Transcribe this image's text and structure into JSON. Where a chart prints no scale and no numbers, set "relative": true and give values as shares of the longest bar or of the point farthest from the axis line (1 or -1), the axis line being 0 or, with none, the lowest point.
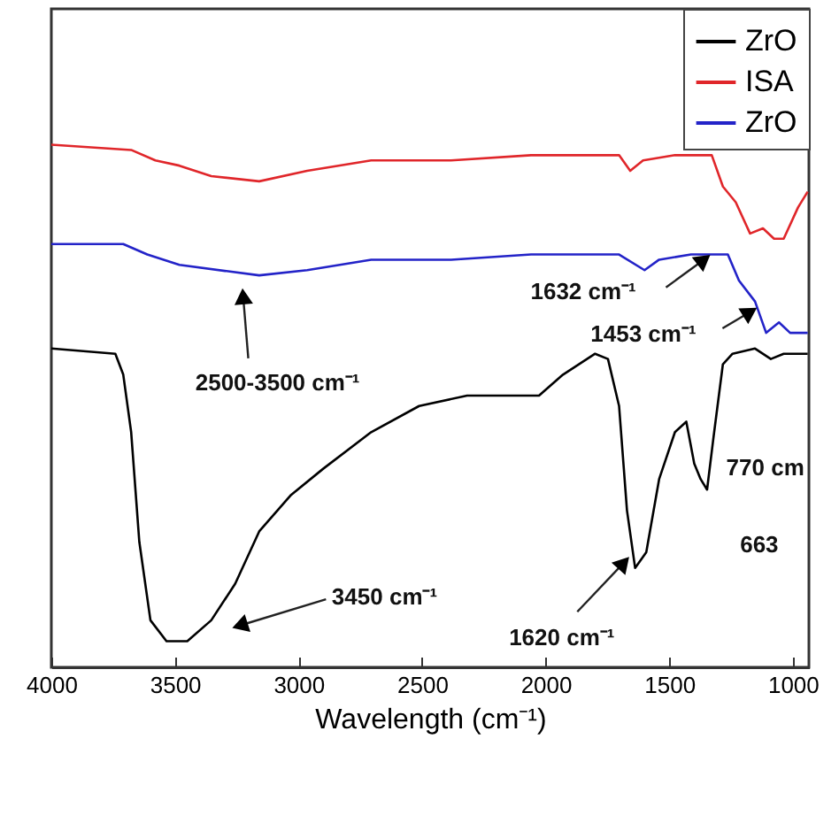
{
  "chart_data": {
    "type": "line",
    "xlabel": "Wavelength (cm⁻¹)",
    "xlim": [
      4000,
      935
    ],
    "xticks": [
      4000,
      3500,
      3000,
      2500,
      2000,
      1500,
      1000
    ],
    "relative": true,
    "legend": "top right",
    "grid": false,
    "series": [
      {
        "name": "ZrO",
        "color": "#000000",
        "x": [
          4000,
          3741,
          3709,
          3677,
          3644,
          3599,
          3534,
          3450,
          3353,
          3256,
          3159,
          3030,
          2900,
          2706,
          2512,
          2318,
          2124,
          2027,
          1930,
          1800,
          1748,
          1703,
          1671,
          1638,
          1593,
          1541,
          1477,
          1431,
          1399,
          1373,
          1347,
          1321,
          1283,
          1244,
          1153,
          1089,
          1037,
          940
        ],
        "values": [
          0.61,
          0.6,
          0.56,
          0.45,
          0.24,
          0.09,
          0.05,
          0.05,
          0.09,
          0.16,
          0.26,
          0.33,
          0.38,
          0.45,
          0.5,
          0.52,
          0.52,
          0.52,
          0.56,
          0.6,
          0.59,
          0.5,
          0.3,
          0.19,
          0.22,
          0.36,
          0.45,
          0.47,
          0.39,
          0.36,
          0.34,
          0.44,
          0.58,
          0.6,
          0.61,
          0.59,
          0.6,
          0.6
        ]
      },
      {
        "name": "ISA",
        "color": "#e0262a",
        "x": [
          4000,
          3677,
          3579,
          3482,
          3353,
          3159,
          2965,
          2706,
          2383,
          2059,
          1800,
          1703,
          1658,
          1606,
          1477,
          1380,
          1328,
          1283,
          1231,
          1173,
          1121,
          1076,
          1037,
          979,
          940
        ],
        "values": [
          1.0,
          0.99,
          0.97,
          0.96,
          0.94,
          0.93,
          0.95,
          0.97,
          0.97,
          0.98,
          0.98,
          0.98,
          0.95,
          0.97,
          0.98,
          0.98,
          0.98,
          0.92,
          0.89,
          0.83,
          0.84,
          0.82,
          0.82,
          0.88,
          0.91
        ]
      },
      {
        "name": "ZrO",
        "color": "#2323c8",
        "x": [
          4000,
          3709,
          3612,
          3482,
          3159,
          2965,
          2706,
          2383,
          2059,
          1703,
          1600,
          1541,
          1412,
          1263,
          1218,
          1153,
          1108,
          1056,
          1011,
          940
        ],
        "values": [
          0.81,
          0.81,
          0.79,
          0.77,
          0.75,
          0.76,
          0.78,
          0.78,
          0.79,
          0.79,
          0.76,
          0.78,
          0.79,
          0.79,
          0.74,
          0.7,
          0.64,
          0.66,
          0.64,
          0.64
        ]
      }
    ],
    "annotations": [
      {
        "text": "2500-3500 cm⁻¹",
        "x": 3224,
        "y": 0.71
      },
      {
        "text": "1632 cm⁻¹",
        "x": 1360,
        "y": 0.78
      },
      {
        "text": "1453 cm⁻¹",
        "x": 1173,
        "y": 0.68
      },
      {
        "text": "3450 cm⁻¹",
        "x": 3237,
        "y": 0.08
      },
      {
        "text": "1620 cm⁻¹",
        "x": 1684,
        "y": 0.2
      },
      "770 cm",
      "663"
    ]
  }
}
